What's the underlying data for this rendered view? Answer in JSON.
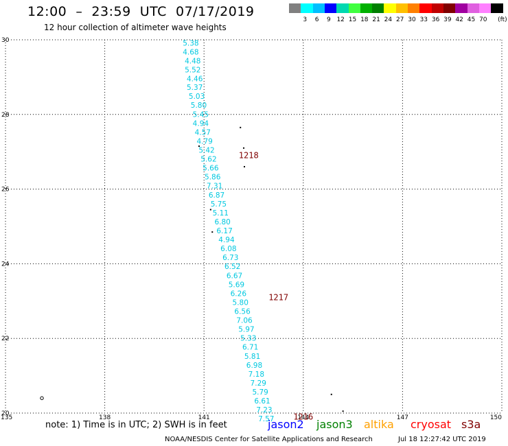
{
  "header": {
    "title": "12:00  –  23:59  UTC  07/17/2019",
    "subtitle": "12 hour collection of altimeter wave heights"
  },
  "legend": {
    "unit": "(ft)",
    "colors": [
      "#808080",
      "#00ffff",
      "#00bfff",
      "#0000ff",
      "#00d8b0",
      "#40ff40",
      "#00b000",
      "#008000",
      "#ffff00",
      "#ffc000",
      "#ff8000",
      "#ff0000",
      "#c00000",
      "#800000",
      "#a000a0",
      "#e060e0",
      "#ff80ff",
      "#000000"
    ],
    "labels": [
      "3",
      "6",
      "9",
      "12",
      "15",
      "18",
      "21",
      "24",
      "27",
      "30",
      "33",
      "36",
      "39",
      "42",
      "45",
      "70"
    ]
  },
  "footer": {
    "note": "note:  1)  Time is in UTC;  2)  SWH is in feet",
    "missions": [
      {
        "name": "jason2",
        "color": "#0000ff"
      },
      {
        "name": "jason3",
        "color": "#008000"
      },
      {
        "name": "altika",
        "color": "#ffa000"
      },
      {
        "name": "cryosat",
        "color": "#ff0000"
      },
      {
        "name": "s3a",
        "color": "#800000"
      }
    ],
    "credit": "NOAA/NESDIS Center for Satellite Applications and Research",
    "timestamp": "Jul 18 12:27:42 UTC 2019"
  },
  "chart_data": {
    "type": "scatter",
    "xlim": [
      135,
      150
    ],
    "ylim": [
      20,
      30
    ],
    "x_ticks": [
      135,
      138,
      141,
      144,
      147,
      150
    ],
    "y_ticks": [
      20,
      22,
      24,
      26,
      28,
      30
    ],
    "grid": true,
    "series": [
      {
        "color": "#00c8e0",
        "points": [
          [
            140.6,
            29.92,
            "5.38"
          ],
          [
            140.6,
            29.68,
            "4.68"
          ],
          [
            140.66,
            29.44,
            "4.48"
          ],
          [
            140.66,
            29.2,
            "5.52"
          ],
          [
            140.72,
            28.96,
            "4.46"
          ],
          [
            140.72,
            28.73,
            "5.37"
          ],
          [
            140.78,
            28.49,
            "5.03"
          ],
          [
            140.84,
            28.25,
            "5.80"
          ],
          [
            140.9,
            28.01,
            "5.45"
          ],
          [
            140.9,
            27.77,
            "4.94"
          ],
          [
            140.96,
            27.53,
            "4.57"
          ],
          [
            141.02,
            27.29,
            "4.79"
          ],
          [
            141.08,
            27.05,
            "5.42"
          ],
          [
            141.14,
            26.81,
            "5.62"
          ],
          [
            141.2,
            26.57,
            "5.66"
          ],
          [
            141.26,
            26.33,
            "5.86"
          ],
          [
            141.32,
            26.09,
            "7.31"
          ],
          [
            141.38,
            25.85,
            "6.87"
          ],
          [
            141.44,
            25.61,
            "5.75"
          ],
          [
            141.5,
            25.37,
            "5.11"
          ],
          [
            141.56,
            25.13,
            "6.80"
          ],
          [
            141.62,
            24.89,
            "6.17"
          ],
          [
            141.68,
            24.65,
            "4.94"
          ],
          [
            141.74,
            24.41,
            "6.08"
          ],
          [
            141.8,
            24.17,
            "6.73"
          ],
          [
            141.86,
            23.93,
            "6.52"
          ],
          [
            141.92,
            23.69,
            "6.67"
          ],
          [
            141.98,
            23.45,
            "5.69"
          ],
          [
            142.04,
            23.21,
            "6.26"
          ],
          [
            142.1,
            22.97,
            "5.80"
          ],
          [
            142.16,
            22.73,
            "6.56"
          ],
          [
            142.22,
            22.49,
            "7.06"
          ],
          [
            142.28,
            22.25,
            "5.97"
          ],
          [
            142.34,
            22.01,
            "5.33"
          ],
          [
            142.4,
            21.77,
            "6.71"
          ],
          [
            142.46,
            21.53,
            "5.81"
          ],
          [
            142.52,
            21.29,
            "6.98"
          ],
          [
            142.58,
            21.05,
            "7.18"
          ],
          [
            142.64,
            20.81,
            "7.29"
          ],
          [
            142.7,
            20.57,
            "5.79"
          ],
          [
            142.76,
            20.33,
            "6.61"
          ],
          [
            142.82,
            20.09,
            "7.23"
          ],
          [
            142.88,
            19.85,
            "7.57"
          ]
        ]
      }
    ],
    "annotations": [
      {
        "text": "1218",
        "x": 142.05,
        "y": 26.9,
        "color": "#800000"
      },
      {
        "text": "1217",
        "x": 142.95,
        "y": 23.1,
        "color": "#800000"
      },
      {
        "text": "1216",
        "x": 143.7,
        "y": 19.9,
        "color": "#800000"
      }
    ],
    "markers": [
      {
        "x": 142.1,
        "y": 27.65,
        "symbol": "dot"
      },
      {
        "x": 140.85,
        "y": 27.15,
        "symbol": "dot"
      },
      {
        "x": 142.2,
        "y": 27.1,
        "symbol": "dot"
      },
      {
        "x": 142.22,
        "y": 26.6,
        "symbol": "dot"
      },
      {
        "x": 141.2,
        "y": 25.45,
        "symbol": "dot"
      },
      {
        "x": 141.25,
        "y": 24.85,
        "symbol": "dot"
      },
      {
        "x": 144.85,
        "y": 20.5,
        "symbol": "dot"
      },
      {
        "x": 145.2,
        "y": 20.05,
        "symbol": "dot"
      },
      {
        "x": 136.1,
        "y": 20.4,
        "symbol": "circle"
      }
    ]
  }
}
